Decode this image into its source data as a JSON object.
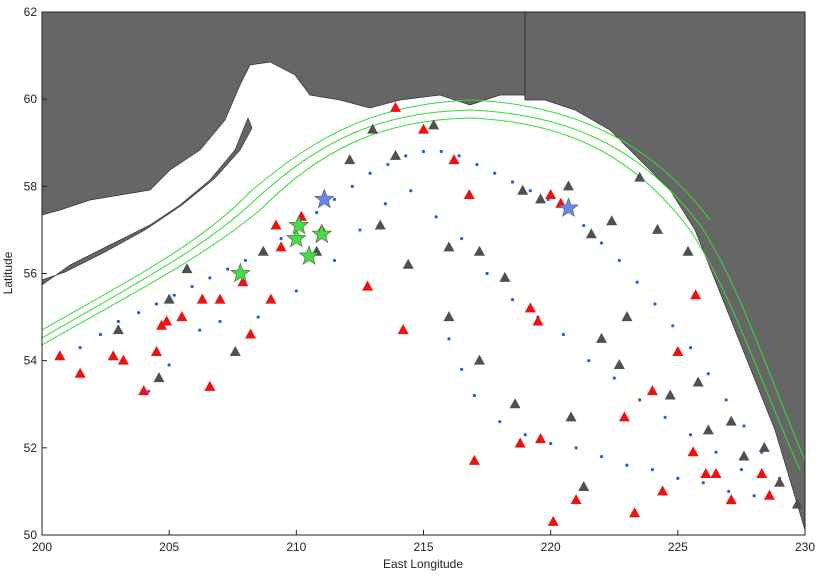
{
  "chart_data": {
    "type": "scatter",
    "xlabel": "East Longitude",
    "ylabel": "Latitude",
    "xlim": [
      200,
      230
    ],
    "ylim": [
      50,
      62
    ],
    "xticks": [
      200,
      205,
      210,
      215,
      220,
      225,
      230
    ],
    "yticks": [
      50,
      52,
      54,
      56,
      58,
      60,
      62
    ],
    "series": [
      {
        "color": "#1f5fe0",
        "marker": "dot",
        "x": [
          201.5,
          202.3,
          203.0,
          203.8,
          204.5,
          205.2,
          205.9,
          206.6,
          207.3,
          208.0,
          208.7,
          209.4,
          210.1,
          210.8,
          211.5,
          212.2,
          212.9,
          213.6,
          214.3,
          215.0,
          215.7,
          216.4,
          217.1,
          217.8,
          218.5,
          219.2,
          219.9,
          220.6,
          221.3,
          222.0,
          222.7,
          223.4,
          224.1,
          224.8,
          225.5,
          226.2,
          226.9,
          227.6,
          228.3,
          229.0,
          204.2,
          205.0,
          206.2,
          207.0,
          208.5,
          210.0,
          211.5,
          212.5,
          213.5,
          214.5,
          215.5,
          216.5,
          217.5,
          218.5,
          219.5,
          220.5,
          221.5,
          222.5,
          223.5,
          224.5,
          225.5,
          226.5,
          227.5,
          216.0,
          216.5,
          217.0,
          218.0,
          219.0,
          220.0,
          221.0,
          222.0,
          223.0,
          224.0,
          225.0,
          226.0,
          227.0,
          228.0
        ],
        "y": [
          54.3,
          54.6,
          54.9,
          55.1,
          55.3,
          55.5,
          55.7,
          55.9,
          56.1,
          56.3,
          56.5,
          56.8,
          57.1,
          57.4,
          57.7,
          58.0,
          58.3,
          58.5,
          58.7,
          58.8,
          58.8,
          58.7,
          58.5,
          58.3,
          58.1,
          57.9,
          57.7,
          57.4,
          57.1,
          56.7,
          56.3,
          55.8,
          55.3,
          54.8,
          54.3,
          53.7,
          53.1,
          52.5,
          51.9,
          51.3,
          53.3,
          53.9,
          54.7,
          54.9,
          55.0,
          55.6,
          56.3,
          57.0,
          57.6,
          57.9,
          57.3,
          56.8,
          56.0,
          55.4,
          55.0,
          54.6,
          54.0,
          53.6,
          53.1,
          52.7,
          52.3,
          51.9,
          51.5,
          54.5,
          53.8,
          53.2,
          52.6,
          52.3,
          52.1,
          52.0,
          51.8,
          51.6,
          51.5,
          51.3,
          51.2,
          51.0,
          50.9
        ]
      },
      {
        "color": "#ee1111",
        "marker": "triangle",
        "x": [
          200.7,
          201.5,
          202.8,
          203.2,
          204.0,
          204.5,
          204.7,
          204.9,
          205.5,
          206.3,
          206.6,
          207.0,
          207.9,
          208.2,
          209.0,
          209.2,
          209.4,
          210.2,
          211.0,
          212.8,
          213.9,
          214.2,
          215.0,
          216.2,
          216.8,
          217.0,
          218.8,
          219.2,
          219.5,
          219.6,
          220.0,
          220.4,
          220.1,
          221.0,
          222.9,
          223.3,
          224.0,
          224.4,
          225.0,
          225.6,
          226.1,
          226.5,
          227.1,
          228.3,
          228.6,
          225.7
        ],
        "y": [
          54.1,
          53.7,
          54.1,
          54.0,
          53.3,
          54.2,
          54.8,
          54.9,
          55.0,
          55.4,
          53.4,
          55.4,
          55.8,
          54.6,
          55.4,
          57.1,
          56.6,
          57.3,
          57.0,
          55.7,
          59.8,
          54.7,
          59.3,
          58.6,
          57.8,
          51.7,
          52.1,
          55.2,
          54.9,
          52.2,
          57.8,
          57.6,
          50.3,
          50.8,
          52.7,
          50.5,
          53.3,
          51.0,
          54.2,
          51.9,
          51.4,
          51.4,
          50.8,
          51.4,
          50.9,
          55.5
        ]
      },
      {
        "color": "#505050",
        "marker": "triangle",
        "x": [
          203.0,
          204.6,
          205.0,
          205.7,
          207.6,
          208.7,
          210.8,
          212.1,
          213.0,
          213.9,
          215.4,
          216.0,
          217.2,
          218.2,
          218.9,
          219.6,
          220.7,
          221.6,
          222.4,
          223.5,
          224.2,
          225.4,
          223.0,
          222.0,
          220.8,
          218.6,
          217.2,
          216.0,
          214.4,
          213.3,
          224.7,
          225.8,
          226.2,
          227.1,
          227.6,
          228.4,
          229.0,
          229.7,
          222.7,
          221.3
        ],
        "y": [
          54.7,
          53.6,
          55.4,
          56.1,
          54.2,
          56.5,
          56.5,
          58.6,
          59.3,
          58.7,
          59.4,
          56.6,
          56.5,
          55.9,
          57.9,
          57.7,
          58.0,
          56.9,
          57.2,
          58.2,
          57.0,
          56.5,
          55.0,
          54.5,
          52.7,
          53.0,
          54.0,
          55.0,
          56.2,
          57.1,
          53.2,
          53.5,
          52.4,
          52.6,
          51.8,
          52.0,
          51.2,
          50.7,
          53.9,
          51.1
        ]
      },
      {
        "color": "#44dd44",
        "marker": "star",
        "x": [
          207.8,
          210.0,
          210.1,
          211.0,
          210.5
        ],
        "y": [
          56.0,
          56.8,
          57.1,
          56.9,
          56.4
        ]
      },
      {
        "color": "#6688ee",
        "marker": "star",
        "x": [
          211.1,
          220.7
        ],
        "y": [
          57.7,
          57.5
        ]
      }
    ]
  }
}
